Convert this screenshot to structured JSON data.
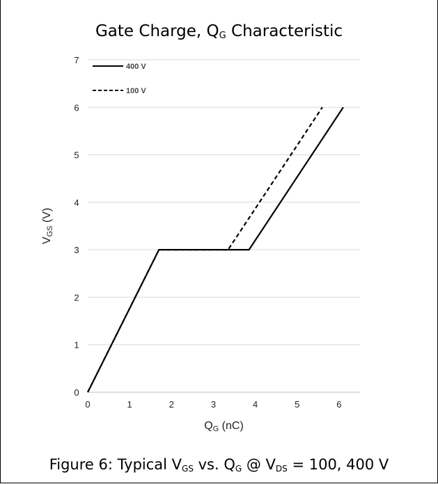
{
  "figure": {
    "title_main": "Gate Charge, Q",
    "title_sub": "G",
    "title_tail": " Characteristic",
    "caption_parts": [
      {
        "t": "Figure 6: Typical V",
        "s": false
      },
      {
        "t": "GS",
        "s": true
      },
      {
        "t": " vs. Q",
        "s": false
      },
      {
        "t": "G",
        "s": true
      },
      {
        "t": " @ V",
        "s": false
      },
      {
        "t": "DS",
        "s": true
      },
      {
        "t": " = 100, 400 V",
        "s": false
      }
    ]
  },
  "chart_data": {
    "type": "line",
    "title": "Gate Charge, QG Characteristic",
    "xlabel_main": "Q",
    "xlabel_sub": "G",
    "xlabel_tail": " (nC)",
    "ylabel_main": "V",
    "ylabel_sub": "GS",
    "ylabel_tail": " (V)",
    "xlim": [
      0,
      6.5
    ],
    "ylim": [
      0,
      7
    ],
    "xticks": [
      0,
      1,
      2,
      3,
      4,
      5,
      6
    ],
    "yticks": [
      0,
      1,
      2,
      3,
      4,
      5,
      6,
      7
    ],
    "grid": "horizontal",
    "legend_position": "top-left",
    "series": [
      {
        "name": "400 V",
        "style": "solid",
        "color": "#000000",
        "x": [
          0,
          1.7,
          3.85,
          6.1
        ],
        "y": [
          0,
          3,
          3,
          6
        ]
      },
      {
        "name": "100 V",
        "style": "dashed",
        "color": "#000000",
        "x": [
          0,
          1.7,
          3.35,
          5.6
        ],
        "y": [
          0,
          3,
          3,
          6
        ]
      }
    ]
  }
}
